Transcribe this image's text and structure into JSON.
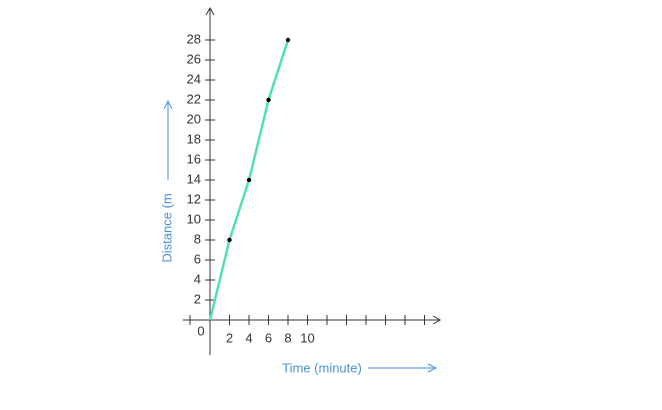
{
  "chart_data": {
    "type": "line",
    "x_label": "Time (minute)",
    "y_label": "Distance (m",
    "origin_label": "0",
    "x": [
      0,
      2,
      4,
      6,
      8
    ],
    "series": [
      {
        "color": "#4fe0b6",
        "values": [
          0,
          8,
          14,
          22,
          28
        ]
      }
    ],
    "xlim": [
      -2.8,
      23.6
    ],
    "xticks": [
      2,
      4,
      6,
      8,
      10
    ],
    "ylim": [
      -3.5,
      31.2
    ],
    "yticks": [
      2,
      4,
      6,
      8,
      10,
      12,
      14,
      16,
      18,
      20,
      22,
      24,
      26,
      28
    ]
  }
}
